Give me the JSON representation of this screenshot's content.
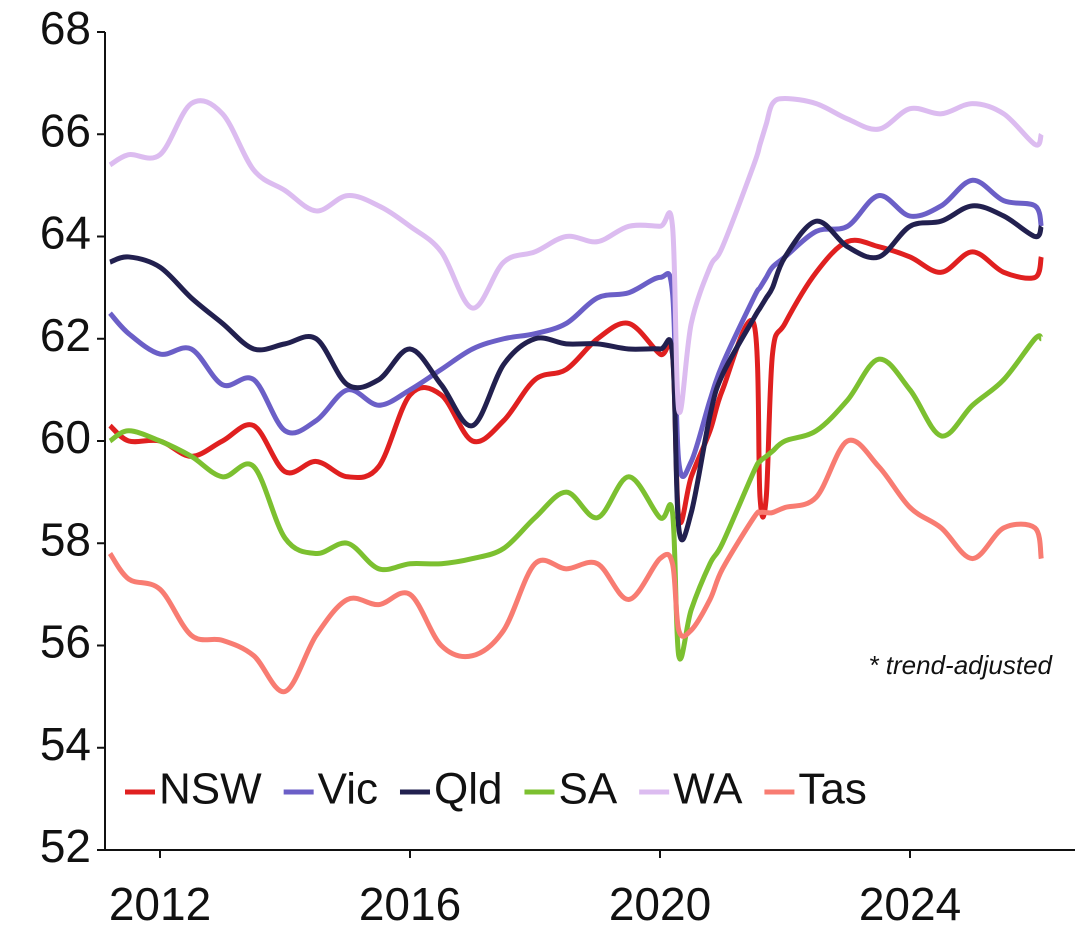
{
  "chart_data": {
    "type": "line",
    "annotation": "* trend-adjusted",
    "x": [
      2011.2,
      2011.5,
      2012,
      2012.5,
      2013,
      2013.5,
      2014,
      2014.5,
      2015,
      2015.5,
      2016,
      2016.5,
      2017,
      2017.5,
      2018,
      2018.5,
      2019,
      2019.5,
      2020,
      2020.2,
      2020.3,
      2020.5,
      2020.8,
      2021,
      2021.5,
      2021.6,
      2021.7,
      2021.8,
      2022,
      2022.5,
      2023,
      2023.5,
      2024,
      2024.5,
      2025,
      2025.5,
      2026,
      2026.1
    ],
    "series": [
      {
        "name": "NSW",
        "color": "#e02020",
        "values": [
          60.3,
          60.0,
          60.0,
          59.7,
          60.0,
          60.3,
          59.4,
          59.6,
          59.3,
          59.5,
          60.9,
          60.9,
          60.0,
          60.4,
          61.2,
          61.4,
          62.0,
          62.3,
          61.7,
          61.7,
          58.5,
          59.3,
          60.2,
          61.0,
          62.3,
          58.9,
          58.9,
          61.7,
          62.3,
          63.3,
          63.9,
          63.8,
          63.6,
          63.3,
          63.7,
          63.3,
          63.2,
          63.6
        ]
      },
      {
        "name": "Vic",
        "color": "#6b5fc7",
        "values": [
          62.5,
          62.1,
          61.7,
          61.8,
          61.1,
          61.2,
          60.2,
          60.4,
          61.0,
          60.7,
          61.0,
          61.4,
          61.8,
          62.0,
          62.1,
          62.3,
          62.8,
          62.9,
          63.2,
          62.9,
          59.6,
          59.6,
          60.8,
          61.5,
          62.8,
          63.0,
          63.2,
          63.4,
          63.6,
          64.1,
          64.2,
          64.8,
          64.4,
          64.6,
          65.1,
          64.7,
          64.6,
          64.2
        ]
      },
      {
        "name": "Qld",
        "color": "#22204f",
        "values": [
          63.5,
          63.6,
          63.4,
          62.8,
          62.3,
          61.8,
          61.9,
          62.0,
          61.1,
          61.2,
          61.8,
          61.1,
          60.3,
          61.5,
          62.0,
          61.9,
          61.9,
          61.8,
          61.8,
          61.7,
          58.3,
          58.6,
          60.5,
          61.3,
          62.4,
          62.6,
          62.8,
          63.0,
          63.6,
          64.3,
          63.8,
          63.6,
          64.2,
          64.3,
          64.6,
          64.4,
          64.0,
          64.2
        ]
      },
      {
        "name": "SA",
        "color": "#7cc030",
        "values": [
          60.0,
          60.2,
          60.0,
          59.7,
          59.3,
          59.5,
          58.1,
          57.8,
          58.0,
          57.5,
          57.6,
          57.6,
          57.7,
          57.9,
          58.5,
          59.0,
          58.5,
          59.3,
          58.5,
          58.6,
          55.8,
          56.7,
          57.6,
          58.0,
          59.4,
          59.6,
          59.7,
          59.8,
          60.0,
          60.2,
          60.8,
          61.6,
          61.0,
          60.1,
          60.7,
          61.2,
          62.0,
          62.0
        ]
      },
      {
        "name": "WA",
        "color": "#dcbcf0",
        "values": [
          65.4,
          65.6,
          65.6,
          66.6,
          66.4,
          65.3,
          64.9,
          64.5,
          64.8,
          64.6,
          64.2,
          63.7,
          62.6,
          63.5,
          63.7,
          64.0,
          63.9,
          64.2,
          64.2,
          64.2,
          60.6,
          62.3,
          63.4,
          63.8,
          65.4,
          65.8,
          66.2,
          66.6,
          66.7,
          66.6,
          66.3,
          66.1,
          66.5,
          66.4,
          66.6,
          66.4,
          65.8,
          66.0
        ]
      },
      {
        "name": "Tas",
        "color": "#f87c72",
        "values": [
          57.8,
          57.3,
          57.1,
          56.2,
          56.1,
          55.8,
          55.1,
          56.2,
          56.9,
          56.8,
          57.0,
          56.0,
          55.8,
          56.3,
          57.6,
          57.5,
          57.6,
          56.9,
          57.7,
          57.6,
          56.3,
          56.3,
          56.9,
          57.5,
          58.5,
          58.6,
          58.6,
          58.6,
          58.7,
          58.9,
          60.0,
          59.5,
          58.7,
          58.3,
          57.7,
          58.3,
          58.3,
          57.7
        ]
      }
    ],
    "xlim": [
      2011.12,
      2026.64
    ],
    "xticks": [
      2012,
      2016,
      2020,
      2024
    ],
    "ylim": [
      52,
      68
    ],
    "yticks": [
      52,
      54,
      56,
      58,
      60,
      62,
      64,
      66,
      68
    ],
    "grid": false,
    "legend": "lower left"
  }
}
